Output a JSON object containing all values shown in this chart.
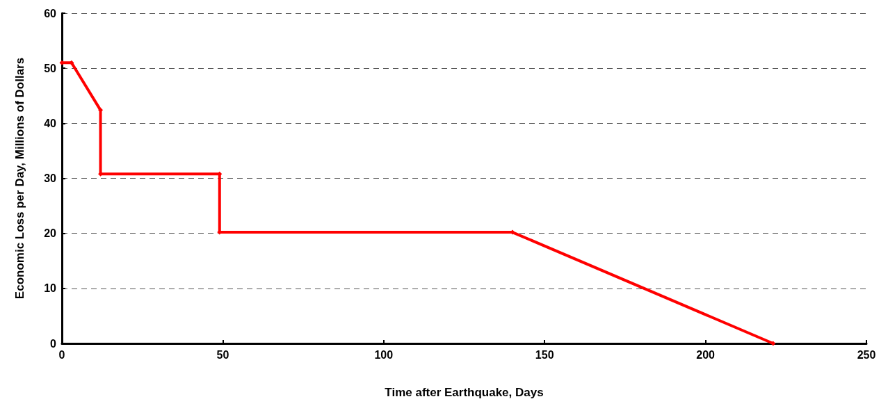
{
  "chart_data": {
    "type": "line",
    "xlabel": "Time after Earthquake, Days",
    "ylabel": "Economic Loss per Day, Millions of Dollars",
    "x": [
      0,
      3,
      12,
      12,
      49,
      49,
      140,
      221
    ],
    "series": [
      {
        "color": "#ff0000",
        "values": [
          51,
          51,
          42.4,
          30.8,
          30.8,
          20.2,
          20.2,
          0
        ]
      }
    ],
    "xlim": [
      0,
      250
    ],
    "xticks": [
      0,
      50,
      100,
      150,
      200,
      250
    ],
    "ylim": [
      0,
      60
    ],
    "yticks": [
      0,
      10,
      20,
      30,
      40,
      50,
      60
    ],
    "grid": "y",
    "marker": "diamond",
    "line_style": "solid"
  }
}
